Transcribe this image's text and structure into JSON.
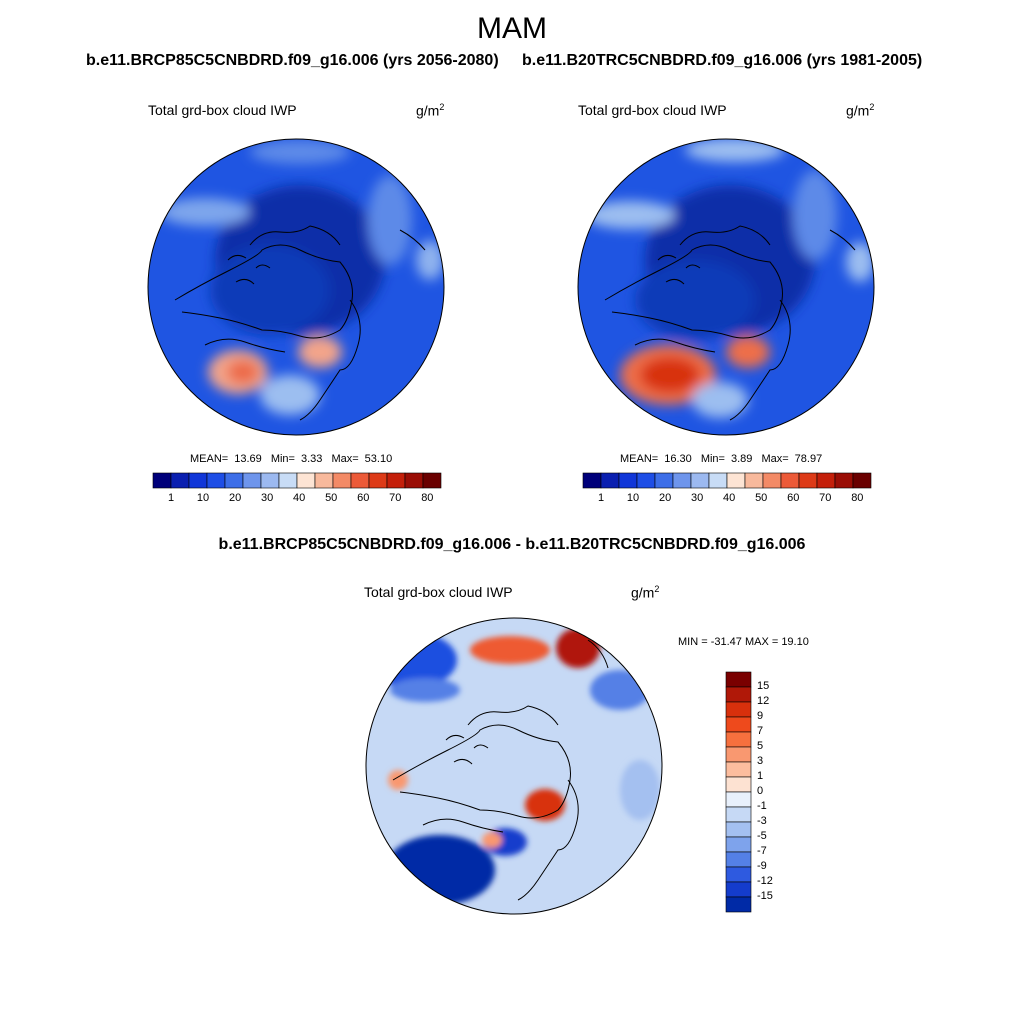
{
  "title": "MAM",
  "panel_left": {
    "header": "b.e11.BRCP85C5CNBDRD.f09_g16.006 (yrs 2056-2080)",
    "variable": "Total grd-box cloud IWP",
    "units": "g/m",
    "units_exp": "2",
    "mean_label": "MEAN=",
    "mean": "13.69",
    "min_label": "Min=",
    "min": "3.33",
    "max_label": "Max=",
    "max": "53.10"
  },
  "panel_right": {
    "header": "b.e11.B20TRC5CNBDRD.f09_g16.006 (yrs 1981-2005)",
    "variable": "Total grd-box cloud IWP",
    "units": "g/m",
    "units_exp": "2",
    "mean_label": "MEAN=",
    "mean": "16.30",
    "min_label": "Min=",
    "min": "3.89",
    "max_label": "Max=",
    "max": "78.97"
  },
  "abs_colorbar": {
    "ticks": [
      "1",
      "10",
      "20",
      "30",
      "40",
      "50",
      "60",
      "70",
      "80"
    ],
    "colors": [
      "#00007a",
      "#0a1fb0",
      "#1036d8",
      "#1e4ee6",
      "#3d6ee8",
      "#6e95ec",
      "#9cb9f0",
      "#c8dcf6",
      "#fde4d4",
      "#f8b99c",
      "#f38a66",
      "#ec5a38",
      "#dd3a17",
      "#c41f0a",
      "#9a0d05",
      "#6a0000"
    ]
  },
  "panel_diff": {
    "header": "b.e11.BRCP85C5CNBDRD.f09_g16.006 - b.e11.B20TRC5CNBDRD.f09_g16.006",
    "variable": "Total grd-box cloud IWP",
    "units": "g/m",
    "units_exp": "2",
    "minmax": "MIN = -31.47 MAX =  19.10"
  },
  "diff_colorbar": {
    "ticks": [
      "15",
      "12",
      "9",
      "7",
      "5",
      "3",
      "1",
      "0",
      "-1",
      "-3",
      "-5",
      "-7",
      "-9",
      "-12",
      "-15"
    ],
    "colors": [
      "#7a0000",
      "#b01808",
      "#d8300c",
      "#ee4a1c",
      "#f6703e",
      "#f99870",
      "#fcbd9e",
      "#fde2d2",
      "#e8f0fb",
      "#c6d9f5",
      "#a4c0f0",
      "#7ea3ec",
      "#5480e6",
      "#2e5ae0",
      "#143ccc",
      "#002aa6"
    ]
  },
  "palette": {
    "deep_blue": "#0a2fa8",
    "mid_blue": "#1f50e0",
    "light_blue": "#c4d8f4",
    "red": "#e8502a",
    "coast": "#000000"
  }
}
